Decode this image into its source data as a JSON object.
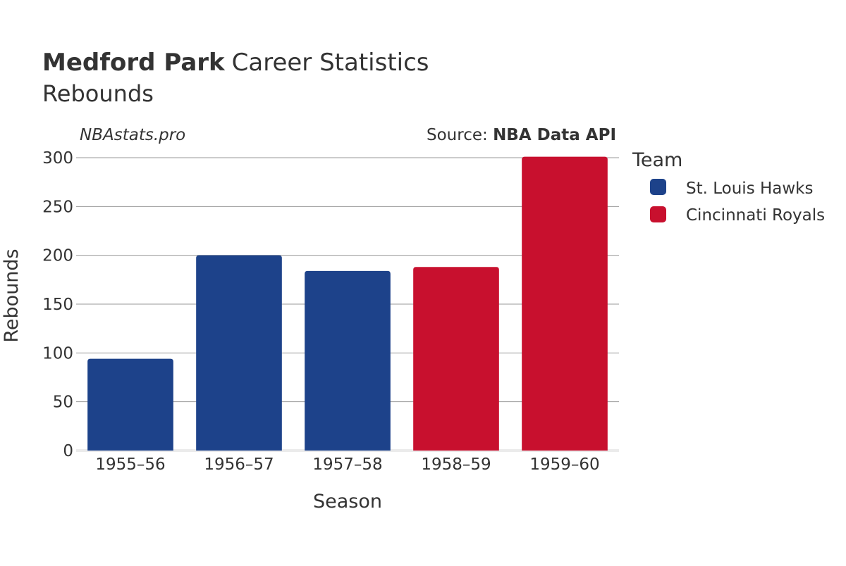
{
  "header": {
    "player_name": "Medford Park",
    "title_suffix": "Career Statistics",
    "subtitle": "Rebounds",
    "watermark": "NBAstats.pro",
    "source_prefix": "Source: ",
    "source_name": "NBA Data API"
  },
  "legend": {
    "title": "Team",
    "items": [
      {
        "label": "St. Louis Hawks",
        "color": "#1d428a"
      },
      {
        "label": "Cincinnati Royals",
        "color": "#c8102e"
      }
    ]
  },
  "chart_data": {
    "type": "bar",
    "xlabel": "Season",
    "ylabel": "Rebounds",
    "ylim": [
      0,
      300
    ],
    "yticks": [
      0,
      50,
      100,
      150,
      200,
      250,
      300
    ],
    "grid": true,
    "legend_position": "right",
    "categories": [
      "1955–56",
      "1956–57",
      "1957–58",
      "1958–59",
      "1959–60"
    ],
    "values": [
      94,
      200,
      184,
      188,
      301
    ],
    "teams": [
      "St. Louis Hawks",
      "St. Louis Hawks",
      "St. Louis Hawks",
      "Cincinnati Royals",
      "Cincinnati Royals"
    ]
  }
}
